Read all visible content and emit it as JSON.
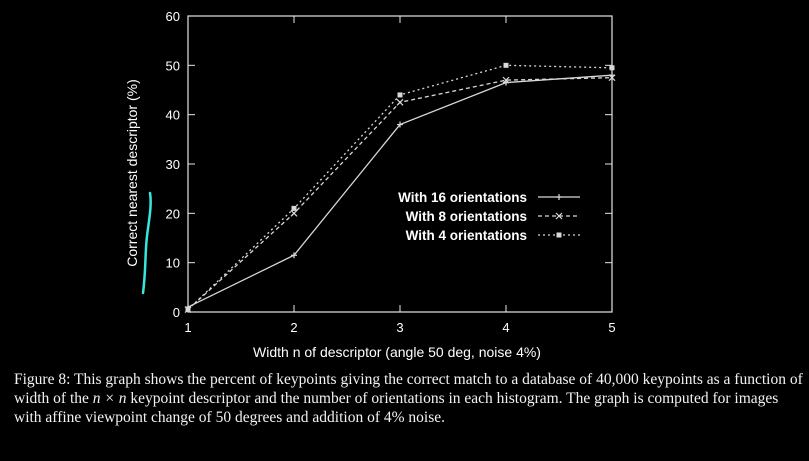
{
  "chart_data": {
    "type": "line",
    "x": [
      1,
      2,
      3,
      4,
      5
    ],
    "series": [
      {
        "name": "With 16 orientations",
        "values": [
          1,
          11.5,
          38,
          46.5,
          48
        ],
        "dash": "none",
        "marker": "+"
      },
      {
        "name": "With 8 orientations",
        "values": [
          0.5,
          20,
          42.5,
          47,
          47.5
        ],
        "dash": "4,3",
        "marker": "x"
      },
      {
        "name": "With 4 orientations",
        "values": [
          0.5,
          21,
          44,
          50,
          49.5
        ],
        "dash": "2,3",
        "marker": "square"
      }
    ],
    "xlabel": "Width n of descriptor (angle 50 deg, noise 4%)",
    "ylabel": "Correct nearest descriptor (%)",
    "xlim": [
      1,
      5
    ],
    "ylim": [
      0,
      60
    ],
    "xticks": [
      "1",
      "2",
      "3",
      "4",
      "5"
    ],
    "yticks": [
      "0",
      "10",
      "20",
      "30",
      "40",
      "50",
      "60"
    ],
    "grid": false,
    "legend_position": "center-right",
    "colors": {
      "background": "#000000",
      "axes": "#e6e6e6",
      "lines": "#d8d8d8",
      "annotation": "#38e6e0"
    }
  },
  "caption": {
    "prefix": "Figure 8: This graph shows the percent of keypoints giving the correct match to a database of 40,000 keypoints as a function of width of the ",
    "math": "n × n",
    "suffix": " keypoint descriptor and the number of orientations in each histogram. The graph is computed for images with affine viewpoint change of 50 degrees and addition of 4% noise."
  }
}
